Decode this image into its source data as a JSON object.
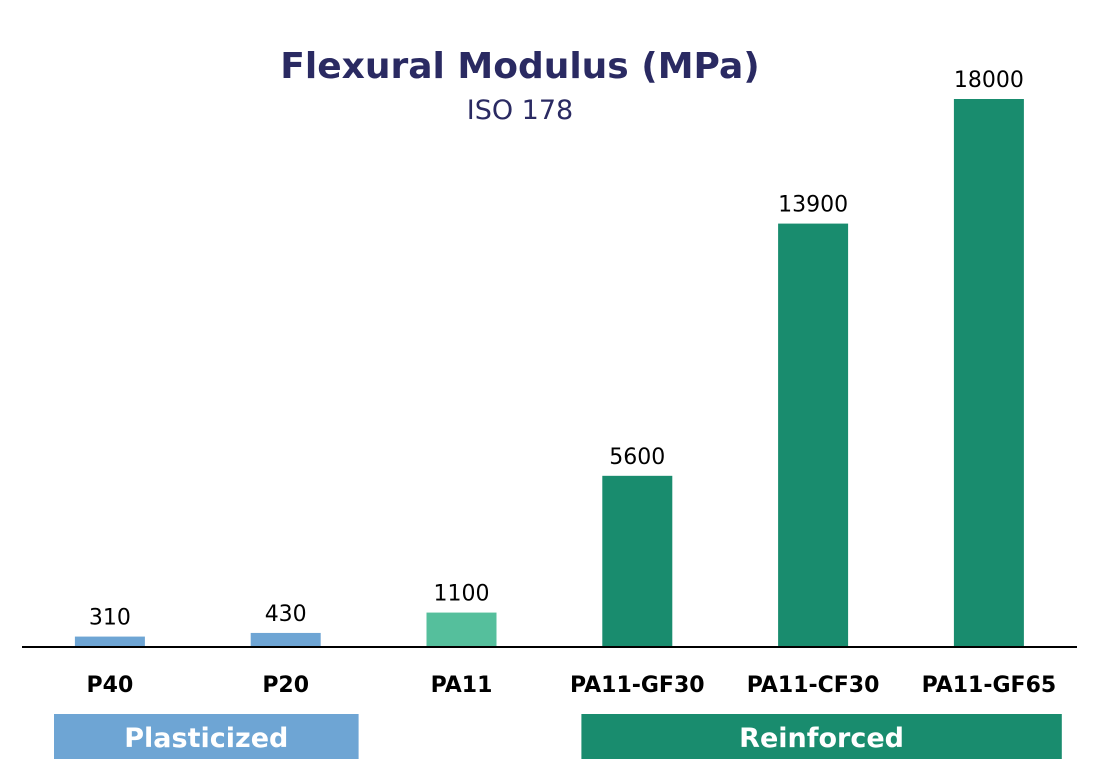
{
  "chart_data": {
    "type": "bar",
    "title": "Flexural Modulus (MPa)",
    "subtitle": "ISO 178",
    "categories": [
      "P40",
      "P20",
      "PA11",
      "PA11-GF30",
      "PA11-CF30",
      "PA11-GF65"
    ],
    "values": [
      310,
      430,
      1100,
      5600,
      13900,
      18000
    ],
    "value_labels": [
      "310",
      "430",
      "1100",
      "5600",
      "13900",
      "18000"
    ],
    "bar_colors": [
      "#6ea5d4",
      "#6ea5d4",
      "#55bf9c",
      "#198c6e",
      "#198c6e",
      "#198c6e"
    ],
    "ylim": [
      0,
      18000
    ],
    "grid": false,
    "legend": "none",
    "groups": [
      {
        "label": "Plasticized",
        "categories": [
          "P40",
          "P20"
        ],
        "color": "#6ea5d4"
      },
      {
        "label": "Reinforced",
        "categories": [
          "PA11-GF30",
          "PA11-CF30",
          "PA11-GF65"
        ],
        "color": "#198c6e"
      }
    ]
  },
  "colors": {
    "title": "#2a2a62",
    "axis": "#000000",
    "text": "#000000",
    "group_text": "#ffffff"
  }
}
